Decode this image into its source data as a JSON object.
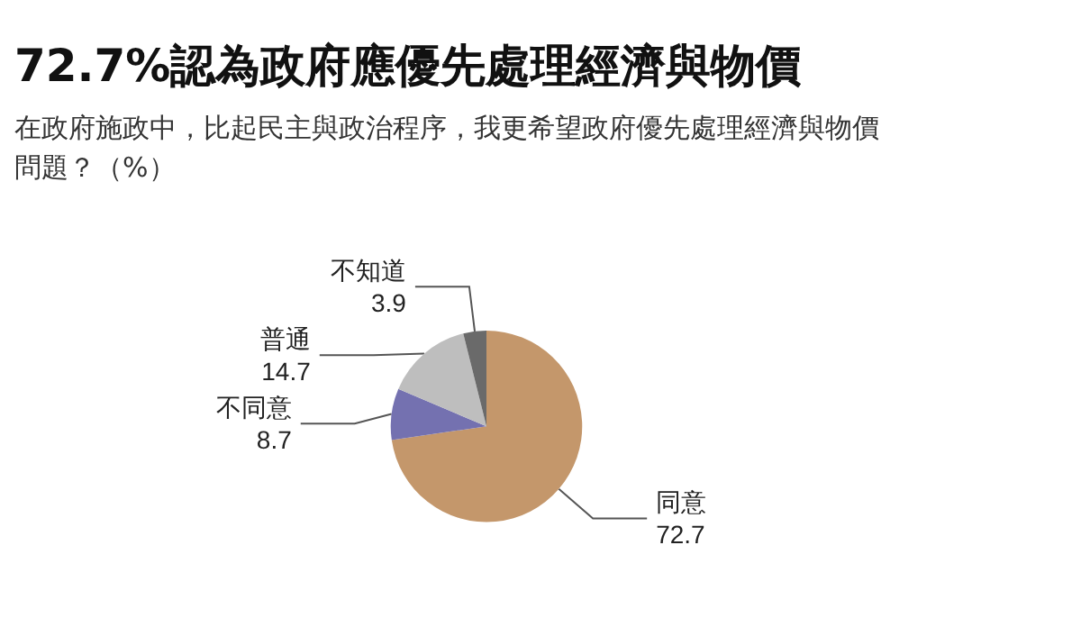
{
  "chart_data": {
    "type": "pie",
    "title": "72.7%認為政府應優先處理經濟與物價",
    "subtitle": "在政府施政中，比起民主與政治程序，我更希望政府優先處理經濟與物價問題？（%）",
    "categories": [
      "同意",
      "不同意",
      "普通",
      "不知道"
    ],
    "values": [
      72.7,
      8.7,
      14.7,
      3.9
    ],
    "colors": [
      "#c4976b",
      "#7471b0",
      "#bebebe",
      "#6a6a6a"
    ],
    "data_labels": true,
    "legend": false
  }
}
